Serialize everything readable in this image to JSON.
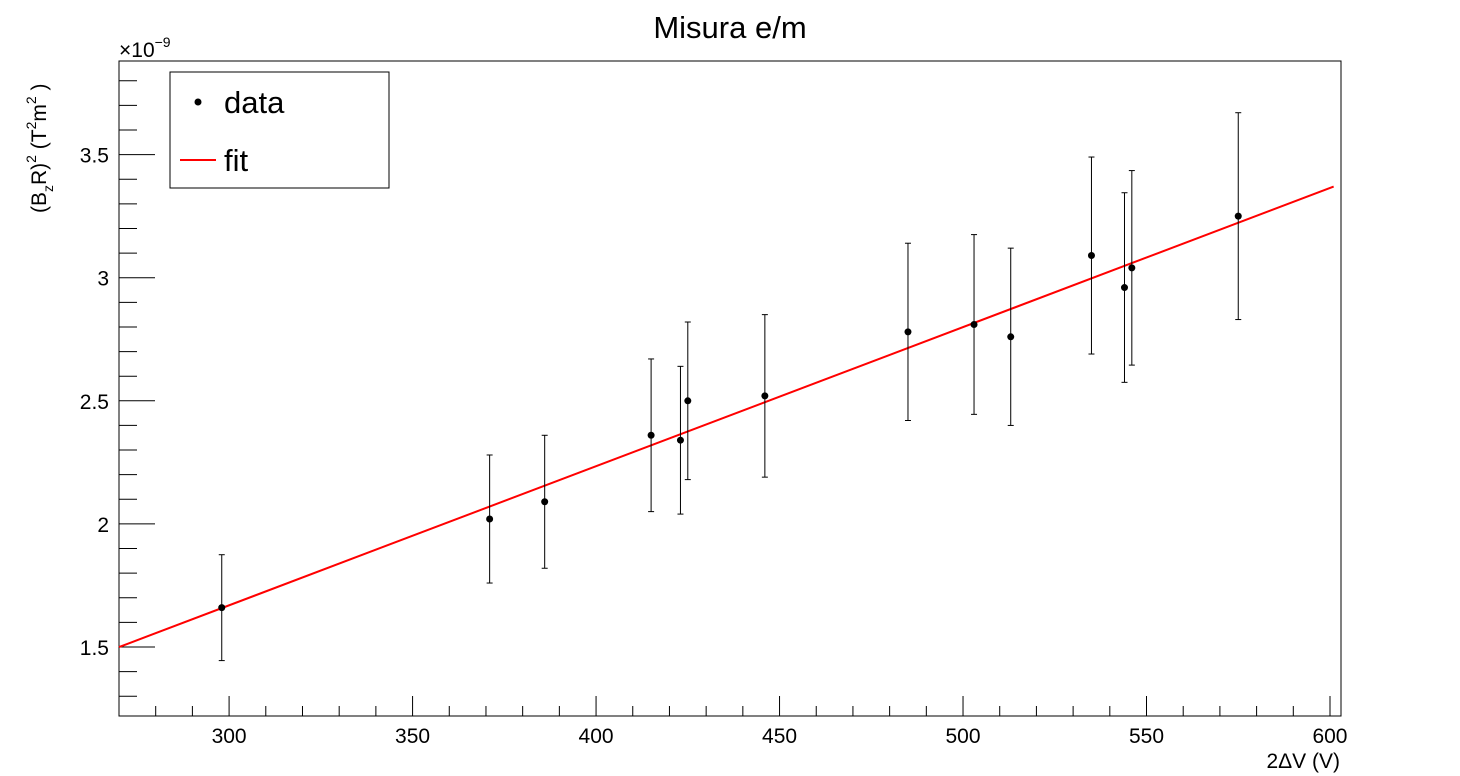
{
  "chart_data": {
    "type": "scatter",
    "title": "Misura e/m",
    "xlabel": "2ΔV (V)",
    "ylabel": {
      "base1": "(B",
      "sub1": "z",
      "mid1": "R)",
      "sup1": "2",
      "mid2": " (T",
      "sup2": "2",
      "mid3": "m",
      "sup3": "2",
      "end": " )"
    },
    "y_multiplier": {
      "base": "×10",
      "exponent": "−9"
    },
    "xlim": [
      270,
      603
    ],
    "ylim": [
      1.22,
      3.88
    ],
    "x_ticks": [
      300,
      350,
      400,
      450,
      500,
      550,
      600
    ],
    "y_ticks": [
      1.5,
      2,
      2.5,
      3,
      3.5
    ],
    "x_tick_labels": [
      "300",
      "350",
      "400",
      "450",
      "500",
      "550",
      "600"
    ],
    "y_tick_labels": [
      "1.5",
      "2",
      "2.5",
      "3",
      "3.5"
    ],
    "grid": false,
    "legend_position": "top-left",
    "legend": [
      "data",
      "fit"
    ],
    "series": [
      {
        "name": "data",
        "type": "scatter",
        "color": "#000000",
        "points": [
          {
            "x": 298,
            "y": 1.66,
            "err": 0.215
          },
          {
            "x": 371,
            "y": 2.02,
            "err": 0.26
          },
          {
            "x": 386,
            "y": 2.09,
            "err": 0.27
          },
          {
            "x": 415,
            "y": 2.36,
            "err": 0.31
          },
          {
            "x": 423,
            "y": 2.34,
            "err": 0.3
          },
          {
            "x": 425,
            "y": 2.5,
            "err": 0.32
          },
          {
            "x": 446,
            "y": 2.52,
            "err": 0.33
          },
          {
            "x": 485,
            "y": 2.78,
            "err": 0.36
          },
          {
            "x": 503,
            "y": 2.81,
            "err": 0.365
          },
          {
            "x": 513,
            "y": 2.76,
            "err": 0.36
          },
          {
            "x": 535,
            "y": 3.09,
            "err": 0.4
          },
          {
            "x": 544,
            "y": 2.96,
            "err": 0.385
          },
          {
            "x": 546,
            "y": 3.04,
            "err": 0.395
          },
          {
            "x": 575,
            "y": 3.25,
            "err": 0.42
          }
        ]
      },
      {
        "name": "fit",
        "type": "line",
        "color": "#ff0000",
        "x": [
          270,
          601
        ],
        "y": [
          1.5,
          3.37
        ]
      }
    ]
  }
}
